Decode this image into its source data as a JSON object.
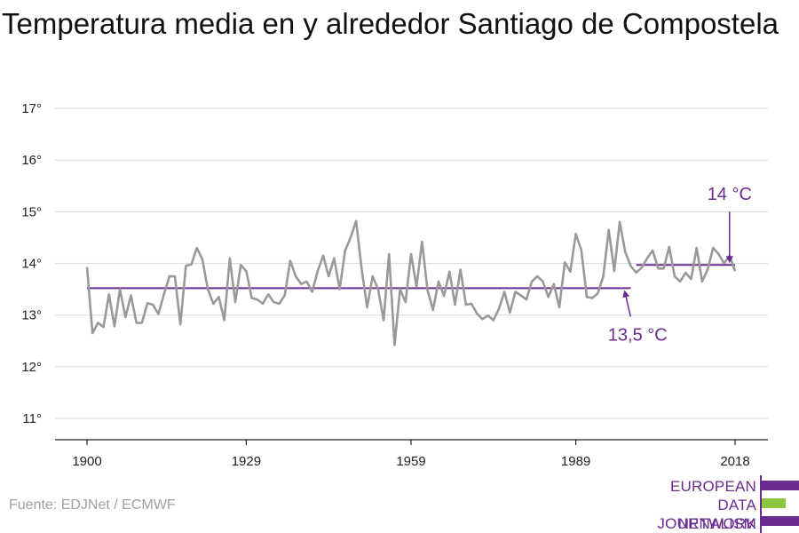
{
  "title": "Temperatura media en y alrededor Santiago de Compostela",
  "source": "Fuente: EDJNet / ECMWF",
  "logo": {
    "line1": "EUROPEAN",
    "line2": "DATA JOURNALISM",
    "line3": "NETWORK",
    "colors": {
      "purple": "#6a2c91",
      "green": "#8cc63f"
    }
  },
  "colors": {
    "series": "#999999",
    "mean": "#6a2c91",
    "grid": "#dddddd",
    "axis": "#222222"
  },
  "chart_data": {
    "type": "line",
    "title": "Temperatura media en y alrededor Santiago de Compostela",
    "xlabel": "",
    "ylabel": "",
    "xlim": [
      1900,
      2018
    ],
    "ylim": [
      11,
      17
    ],
    "x_ticks": [
      1900,
      1929,
      1959,
      1989,
      2018
    ],
    "y_ticks": [
      11,
      12,
      13,
      14,
      15,
      16,
      17
    ],
    "y_tick_labels": [
      "11°",
      "12°",
      "13°",
      "14°",
      "15°",
      "16°",
      "17°"
    ],
    "grid": true,
    "series": [
      {
        "x": [
          1900,
          1901,
          1902,
          1903,
          1904,
          1905,
          1906,
          1907,
          1908,
          1909,
          1910,
          1911,
          1912,
          1913,
          1914,
          1915,
          1916,
          1917,
          1918,
          1919,
          1920,
          1921,
          1922,
          1923,
          1924,
          1925,
          1926,
          1927,
          1928,
          1929,
          1930,
          1931,
          1932,
          1933,
          1934,
          1935,
          1936,
          1937,
          1938,
          1939,
          1940,
          1941,
          1942,
          1943,
          1944,
          1945,
          1946,
          1947,
          1948,
          1949,
          1950,
          1951,
          1952,
          1953,
          1954,
          1955,
          1956,
          1957,
          1958,
          1959,
          1960,
          1961,
          1962,
          1963,
          1964,
          1965,
          1966,
          1967,
          1968,
          1969,
          1970,
          1971,
          1972,
          1973,
          1974,
          1975,
          1976,
          1977,
          1978,
          1979,
          1980,
          1981,
          1982,
          1983,
          1984,
          1985,
          1986,
          1987,
          1988,
          1989,
          1990,
          1991,
          1992,
          1993,
          1994,
          1995,
          1996,
          1997,
          1998,
          1999,
          2000,
          2001,
          2002,
          2003,
          2004,
          2005,
          2006,
          2007,
          2008,
          2009,
          2010,
          2011,
          2012,
          2013,
          2014,
          2015,
          2016,
          2017,
          2018
        ],
        "values": [
          13.93,
          12.65,
          12.85,
          12.77,
          13.4,
          12.78,
          13.5,
          12.96,
          13.38,
          12.85,
          12.85,
          13.23,
          13.2,
          13.02,
          13.4,
          13.75,
          13.75,
          12.82,
          13.95,
          13.98,
          14.3,
          14.08,
          13.5,
          13.22,
          13.35,
          12.9,
          14.1,
          13.25,
          13.97,
          13.85,
          13.33,
          13.3,
          13.22,
          13.4,
          13.25,
          13.22,
          13.38,
          14.05,
          13.75,
          13.6,
          13.65,
          13.45,
          13.85,
          14.15,
          13.75,
          14.1,
          13.5,
          14.25,
          14.5,
          14.82,
          13.9,
          13.15,
          13.75,
          13.5,
          12.9,
          14.18,
          12.42,
          13.5,
          13.25,
          14.18,
          13.55,
          14.42,
          13.48,
          13.1,
          13.65,
          13.37,
          13.84,
          13.2,
          13.88,
          13.2,
          13.22,
          13.03,
          12.92,
          12.99,
          12.9,
          13.12,
          13.45,
          13.05,
          13.45,
          13.38,
          13.3,
          13.65,
          13.75,
          13.65,
          13.35,
          13.6,
          13.15,
          14.02,
          13.84,
          14.57,
          14.26,
          13.35,
          13.33,
          13.42,
          13.75,
          14.65,
          13.85,
          14.8,
          14.22,
          13.95,
          13.82,
          13.92,
          14.1,
          14.25,
          13.9,
          13.9,
          14.32,
          13.75,
          13.65,
          13.82,
          13.7,
          14.3,
          13.65,
          13.88,
          14.3,
          14.18,
          14.0,
          14.15,
          13.85
        ]
      }
    ],
    "reference_lines": [
      {
        "label": "13,5 °C",
        "value": 13.52,
        "x_start": 1900,
        "x_end": 1999
      },
      {
        "label": "14 °C",
        "value": 13.97,
        "x_start": 2000,
        "x_end": 2018
      }
    ],
    "annotations": [
      "13,5 °C",
      "14 °C"
    ],
    "legend": "none"
  }
}
